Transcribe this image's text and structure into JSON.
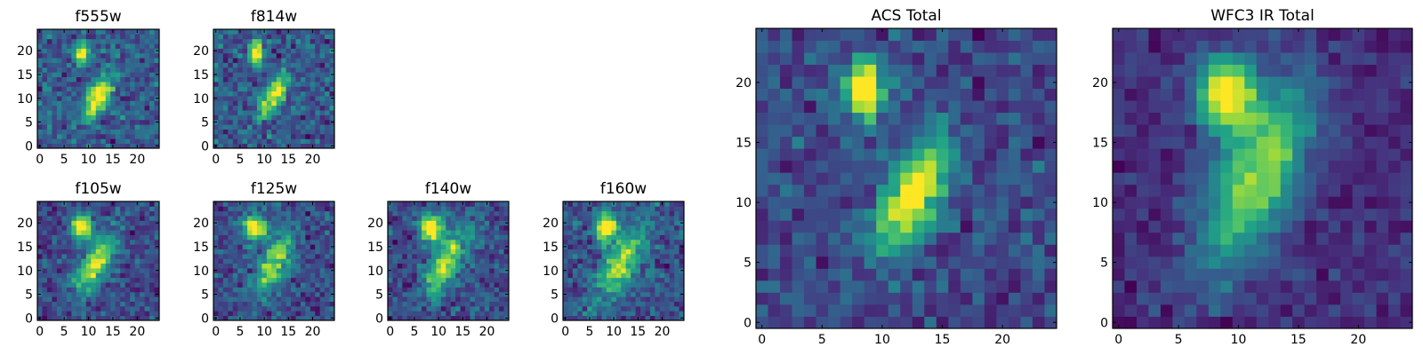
{
  "figure": {
    "colormap": "viridis",
    "colormap_stops": [
      "#440154",
      "#46327e",
      "#365c8d",
      "#277f8e",
      "#1fa187",
      "#4ac16d",
      "#a0da39",
      "#fde725"
    ],
    "background": "#ffffff",
    "axis_color": "#000000"
  },
  "chart_data": [
    {
      "type": "heatmap",
      "title": "f555w",
      "size": 25,
      "xticks": [
        0,
        5,
        10,
        15,
        20
      ],
      "yticks": [
        0,
        5,
        10,
        15,
        20
      ],
      "xlim": [
        -0.5,
        24.5
      ],
      "ylim": [
        -0.5,
        24.5
      ],
      "sources": [
        {
          "x": 8.5,
          "y": 19.5,
          "sx": 1.0,
          "sy": 1.5,
          "amp": 1.0,
          "angle": 0
        },
        {
          "x": 12.0,
          "y": 10.5,
          "sx": 1.4,
          "sy": 3.2,
          "amp": 0.95,
          "angle": 28
        }
      ],
      "noise": 0.24,
      "base": 0.3,
      "seed": 11
    },
    {
      "type": "heatmap",
      "title": "f814w",
      "size": 25,
      "xticks": [
        0,
        5,
        10,
        15,
        20
      ],
      "yticks": [
        0,
        5,
        10,
        15,
        20
      ],
      "xlim": [
        -0.5,
        24.5
      ],
      "ylim": [
        -0.5,
        24.5
      ],
      "sources": [
        {
          "x": 8.5,
          "y": 19.5,
          "sx": 1.0,
          "sy": 1.6,
          "amp": 1.0,
          "angle": 0
        },
        {
          "x": 12.0,
          "y": 10.5,
          "sx": 1.3,
          "sy": 3.2,
          "amp": 0.9,
          "angle": 28
        }
      ],
      "noise": 0.26,
      "base": 0.28,
      "seed": 23
    },
    {
      "type": "heatmap",
      "title": "f105w",
      "size": 25,
      "xticks": [
        0,
        5,
        10,
        15,
        20
      ],
      "yticks": [
        0,
        5,
        10,
        15,
        20
      ],
      "xlim": [
        -0.5,
        24.5
      ],
      "ylim": [
        -0.5,
        24.5
      ],
      "sources": [
        {
          "x": 8.5,
          "y": 19.0,
          "sx": 1.5,
          "sy": 1.8,
          "amp": 1.0,
          "angle": 0
        },
        {
          "x": 11.5,
          "y": 11.5,
          "sx": 2.0,
          "sy": 5.0,
          "amp": 0.75,
          "angle": 28
        }
      ],
      "noise": 0.2,
      "base": 0.33,
      "seed": 37
    },
    {
      "type": "heatmap",
      "title": "f125w",
      "size": 25,
      "xticks": [
        0,
        5,
        10,
        15,
        20
      ],
      "yticks": [
        0,
        5,
        10,
        15,
        20
      ],
      "xlim": [
        -0.5,
        24.5
      ],
      "ylim": [
        -0.5,
        24.5
      ],
      "sources": [
        {
          "x": 8.0,
          "y": 19.0,
          "sx": 1.6,
          "sy": 1.8,
          "amp": 1.0,
          "angle": 0
        },
        {
          "x": 12.0,
          "y": 11.5,
          "sx": 2.0,
          "sy": 4.8,
          "amp": 0.72,
          "angle": 25
        }
      ],
      "noise": 0.22,
      "base": 0.36,
      "seed": 41
    },
    {
      "type": "heatmap",
      "title": "f140w",
      "size": 25,
      "xticks": [
        0,
        5,
        10,
        15,
        20
      ],
      "yticks": [
        0,
        5,
        10,
        15,
        20
      ],
      "xlim": [
        -0.5,
        24.5
      ],
      "ylim": [
        -0.5,
        24.5
      ],
      "sources": [
        {
          "x": 8.5,
          "y": 19.0,
          "sx": 1.6,
          "sy": 2.0,
          "amp": 1.0,
          "angle": 0
        },
        {
          "x": 11.5,
          "y": 11.5,
          "sx": 2.0,
          "sy": 5.2,
          "amp": 0.72,
          "angle": 28
        }
      ],
      "noise": 0.2,
      "base": 0.3,
      "seed": 53
    },
    {
      "type": "heatmap",
      "title": "f160w",
      "size": 25,
      "xticks": [
        0,
        5,
        10,
        15,
        20
      ],
      "yticks": [
        0,
        5,
        10,
        15,
        20
      ],
      "xlim": [
        -0.5,
        24.5
      ],
      "ylim": [
        -0.5,
        24.5
      ],
      "sources": [
        {
          "x": 8.5,
          "y": 19.0,
          "sx": 1.6,
          "sy": 2.2,
          "amp": 1.0,
          "angle": 0
        },
        {
          "x": 11.5,
          "y": 11.5,
          "sx": 2.1,
          "sy": 5.5,
          "amp": 0.75,
          "angle": 28
        }
      ],
      "noise": 0.22,
      "base": 0.28,
      "seed": 67
    },
    {
      "type": "heatmap",
      "title": "ACS Total",
      "size": 25,
      "xticks": [
        0,
        5,
        10,
        15,
        20
      ],
      "yticks": [
        0,
        5,
        10,
        15,
        20
      ],
      "xlim": [
        -0.5,
        24.5
      ],
      "ylim": [
        -0.5,
        24.5
      ],
      "sources": [
        {
          "x": 8.5,
          "y": 19.5,
          "sx": 1.1,
          "sy": 1.7,
          "amp": 1.0,
          "angle": 0
        },
        {
          "x": 12.5,
          "y": 10.5,
          "sx": 1.5,
          "sy": 3.4,
          "amp": 0.88,
          "angle": 28
        }
      ],
      "noise": 0.17,
      "base": 0.32,
      "seed": 79
    },
    {
      "type": "heatmap",
      "title": "WFC3 IR Total",
      "size": 25,
      "xticks": [
        0,
        5,
        10,
        15,
        20
      ],
      "yticks": [
        0,
        5,
        10,
        15,
        20
      ],
      "xlim": [
        -0.5,
        24.5
      ],
      "ylim": [
        -0.5,
        24.5
      ],
      "sources": [
        {
          "x": 9.0,
          "y": 19.0,
          "sx": 1.7,
          "sy": 2.2,
          "amp": 1.0,
          "angle": 0
        },
        {
          "x": 11.5,
          "y": 12.0,
          "sx": 2.2,
          "sy": 5.6,
          "amp": 0.78,
          "angle": 25
        }
      ],
      "noise": 0.12,
      "base": 0.3,
      "seed": 97
    }
  ]
}
